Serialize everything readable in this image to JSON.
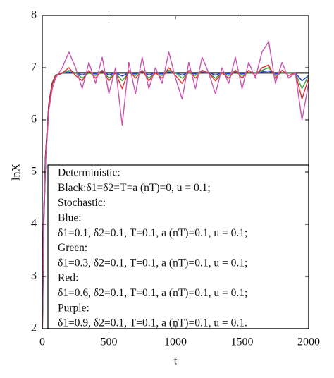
{
  "chart_data": {
    "type": "line",
    "x_label": "t",
    "y_label": "lnX",
    "xlim": [
      0,
      2000
    ],
    "ylim": [
      2,
      8
    ],
    "xticks": [
      0,
      500,
      1000,
      1500,
      2000
    ],
    "yticks": [
      2,
      3,
      4,
      5,
      6,
      7,
      8
    ],
    "x": [
      0,
      10,
      25,
      50,
      75,
      100,
      150,
      200,
      250,
      300,
      350,
      400,
      450,
      500,
      550,
      600,
      650,
      700,
      750,
      800,
      850,
      900,
      950,
      1000,
      1050,
      1100,
      1150,
      1200,
      1250,
      1300,
      1350,
      1400,
      1450,
      1500,
      1550,
      1600,
      1650,
      1700,
      1750,
      1800,
      1850,
      1900,
      1950,
      2000
    ],
    "series": [
      {
        "color": "#000000",
        "values": [
          2,
          4.0,
          5.3,
          6.3,
          6.7,
          6.85,
          6.9,
          6.9,
          6.9,
          6.9,
          6.9,
          6.9,
          6.9,
          6.9,
          6.9,
          6.9,
          6.9,
          6.9,
          6.9,
          6.9,
          6.9,
          6.9,
          6.9,
          6.9,
          6.9,
          6.9,
          6.9,
          6.9,
          6.9,
          6.9,
          6.9,
          6.9,
          6.9,
          6.9,
          6.9,
          6.9,
          6.9,
          6.9,
          6.9,
          6.9,
          6.9,
          6.9,
          6.9,
          6.9
        ]
      },
      {
        "color": "#2a3bd1",
        "values": [
          2,
          4.0,
          5.3,
          6.3,
          6.7,
          6.85,
          6.9,
          6.92,
          6.9,
          6.86,
          6.9,
          6.88,
          6.92,
          6.86,
          6.9,
          6.84,
          6.9,
          6.88,
          6.92,
          6.86,
          6.9,
          6.88,
          6.92,
          6.9,
          6.86,
          6.9,
          6.88,
          6.92,
          6.9,
          6.86,
          6.9,
          6.88,
          6.92,
          6.88,
          6.9,
          6.9,
          6.92,
          6.94,
          6.88,
          6.9,
          6.9,
          6.9,
          6.75,
          6.85
        ]
      },
      {
        "color": "#3aa64a",
        "values": [
          2,
          4.0,
          5.3,
          6.3,
          6.7,
          6.85,
          6.9,
          6.95,
          6.9,
          6.8,
          6.9,
          6.85,
          6.95,
          6.8,
          6.9,
          6.75,
          6.9,
          6.85,
          6.95,
          6.8,
          6.9,
          6.85,
          6.95,
          6.9,
          6.8,
          6.9,
          6.85,
          6.95,
          6.9,
          6.8,
          6.9,
          6.85,
          6.95,
          6.85,
          6.9,
          6.9,
          6.95,
          7.0,
          6.85,
          6.9,
          6.9,
          6.9,
          6.6,
          6.85
        ]
      },
      {
        "color": "#e0302a",
        "values": [
          2,
          4.0,
          5.3,
          6.3,
          6.7,
          6.85,
          6.9,
          7.0,
          6.85,
          6.75,
          6.95,
          6.8,
          6.95,
          6.75,
          6.9,
          6.6,
          6.95,
          6.8,
          6.95,
          6.75,
          6.9,
          6.8,
          7.0,
          6.85,
          6.7,
          6.95,
          6.8,
          6.95,
          6.9,
          6.75,
          6.9,
          6.8,
          6.95,
          6.8,
          6.95,
          6.85,
          7.0,
          7.05,
          6.8,
          6.95,
          6.85,
          6.9,
          6.4,
          6.8
        ]
      },
      {
        "color": "#c855b0",
        "values": [
          2,
          4.0,
          5.2,
          6.2,
          6.6,
          6.8,
          7.0,
          7.3,
          7.0,
          6.6,
          7.1,
          6.7,
          7.2,
          6.5,
          7.0,
          5.9,
          7.1,
          6.5,
          7.2,
          6.6,
          7.0,
          6.7,
          7.3,
          6.8,
          6.4,
          7.1,
          6.6,
          7.2,
          6.9,
          6.5,
          7.0,
          6.7,
          7.2,
          6.6,
          7.1,
          6.8,
          7.3,
          7.5,
          6.7,
          7.1,
          6.8,
          6.9,
          6.0,
          6.7
        ]
      }
    ],
    "legend_text": [
      "Deterministic:",
      "Black:δ1=δ2=T=a (nT)=0, u = 0.1;",
      "Stochastic:",
      "Blue:",
      "δ1=0.1, δ2=0.1, T=0.1, a (nT)=0.1, u = 0.1;",
      "Green:",
      "δ1=0.3, δ2=0.1, T=0.1, a (nT)=0.1, u = 0.1;",
      "Red:",
      "δ1=0.6, δ2=0.1, T=0.1, a (nT)=0.1, u = 0.1;",
      "Purple:",
      "δ1=0.9, δ2=0.1, T=0.1, a (nT)=0.1, u = 0.1."
    ]
  }
}
